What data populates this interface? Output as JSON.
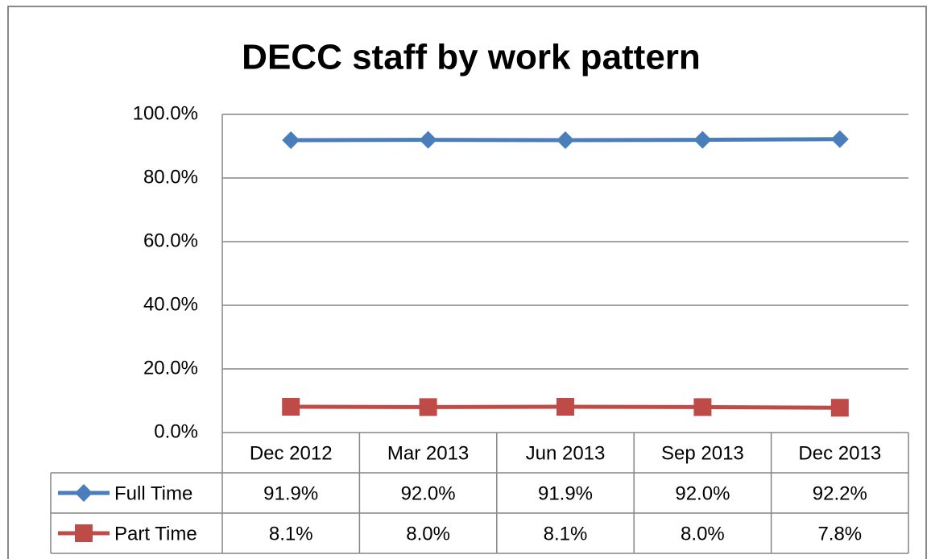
{
  "chart_data": {
    "type": "line",
    "title": "DECC staff by work pattern",
    "categories": [
      "Dec 2012",
      "Mar 2013",
      "Jun 2013",
      "Sep 2013",
      "Dec 2013"
    ],
    "series": [
      {
        "name": "Full Time",
        "color": "#4a7ebb",
        "marker": "diamond",
        "values": [
          91.9,
          92.0,
          91.9,
          92.0,
          92.2
        ],
        "value_labels": [
          "91.9%",
          "92.0%",
          "91.9%",
          "92.0%",
          "92.2%"
        ]
      },
      {
        "name": "Part Time",
        "color": "#be4b48",
        "marker": "square",
        "values": [
          8.1,
          8.0,
          8.1,
          8.0,
          7.8
        ],
        "value_labels": [
          "8.1%",
          "8.0%",
          "8.1%",
          "8.0%",
          "7.8%"
        ]
      }
    ],
    "ylim": [
      0,
      100
    ],
    "yticks": [
      {
        "value": 0,
        "label": "0.0%"
      },
      {
        "value": 20,
        "label": "20.0%"
      },
      {
        "value": 40,
        "label": "40.0%"
      },
      {
        "value": 60,
        "label": "60.0%"
      },
      {
        "value": 80,
        "label": "80.0%"
      },
      {
        "value": 100,
        "label": "100.0%"
      }
    ],
    "grid": true,
    "data_table": true
  }
}
